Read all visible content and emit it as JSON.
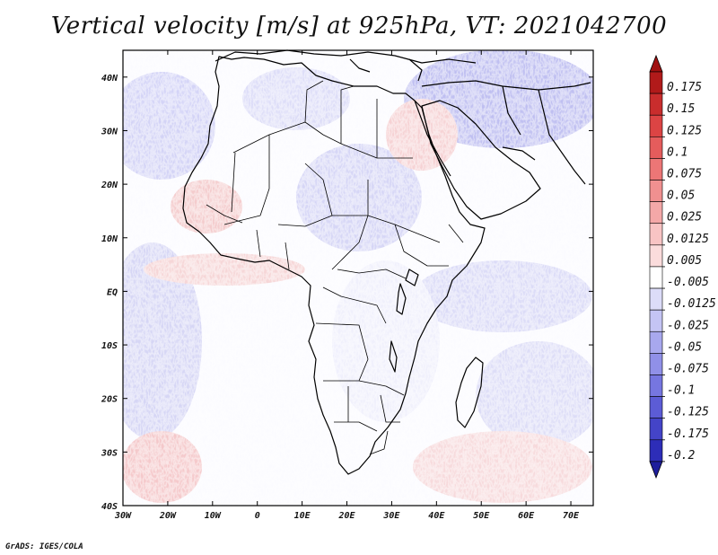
{
  "title": "Vertical velocity [m/s] at 925hPa, VT: 2021042700",
  "credit": "GrADS: IGES/COLA",
  "map": {
    "lon_range": [
      -30,
      75
    ],
    "lat_range": [
      -40,
      45
    ],
    "lon_ticks": [
      {
        "value": -30,
        "label": "30W"
      },
      {
        "value": -20,
        "label": "20W"
      },
      {
        "value": -10,
        "label": "10W"
      },
      {
        "value": 0,
        "label": "0"
      },
      {
        "value": 10,
        "label": "10E"
      },
      {
        "value": 20,
        "label": "20E"
      },
      {
        "value": 30,
        "label": "30E"
      },
      {
        "value": 40,
        "label": "40E"
      },
      {
        "value": 50,
        "label": "50E"
      },
      {
        "value": 60,
        "label": "60E"
      },
      {
        "value": 70,
        "label": "70E"
      }
    ],
    "lat_ticks": [
      {
        "value": 40,
        "label": "40N"
      },
      {
        "value": 30,
        "label": "30N"
      },
      {
        "value": 20,
        "label": "20N"
      },
      {
        "value": 10,
        "label": "10N"
      },
      {
        "value": 0,
        "label": "EQ"
      },
      {
        "value": -10,
        "label": "10S"
      },
      {
        "value": -20,
        "label": "20S"
      },
      {
        "value": -30,
        "label": "30S"
      },
      {
        "value": -40,
        "label": "40S"
      }
    ]
  },
  "colorbar": {
    "levels": [
      {
        "label": "0.175",
        "color": "#b11a1a"
      },
      {
        "label": "0.15",
        "color": "#c92d2d"
      },
      {
        "label": "0.125",
        "color": "#dc4444"
      },
      {
        "label": "0.1",
        "color": "#e55c5c"
      },
      {
        "label": "0.075",
        "color": "#ec7676"
      },
      {
        "label": "0.05",
        "color": "#f09090"
      },
      {
        "label": "0.025",
        "color": "#f4a8a8"
      },
      {
        "label": "0.0125",
        "color": "#f8c4c4"
      },
      {
        "label": "0.005",
        "color": "#fbdcdc"
      },
      {
        "label": "-0.005",
        "color": "#ffffff"
      },
      {
        "label": "-0.0125",
        "color": "#dcdcf8"
      },
      {
        "label": "-0.025",
        "color": "#c4c4f4"
      },
      {
        "label": "-0.05",
        "color": "#a8a8ee"
      },
      {
        "label": "-0.075",
        "color": "#9090e8"
      },
      {
        "label": "-0.1",
        "color": "#7676e0"
      },
      {
        "label": "-0.125",
        "color": "#5c5cd6"
      },
      {
        "label": "-0.175",
        "color": "#4444c8"
      },
      {
        "label": "-0.2",
        "color": "#2d2db8"
      }
    ],
    "top_arrow_color": "#a01010",
    "bottom_arrow_color": "#1e1e9c",
    "middle_color": "#ffffff"
  }
}
